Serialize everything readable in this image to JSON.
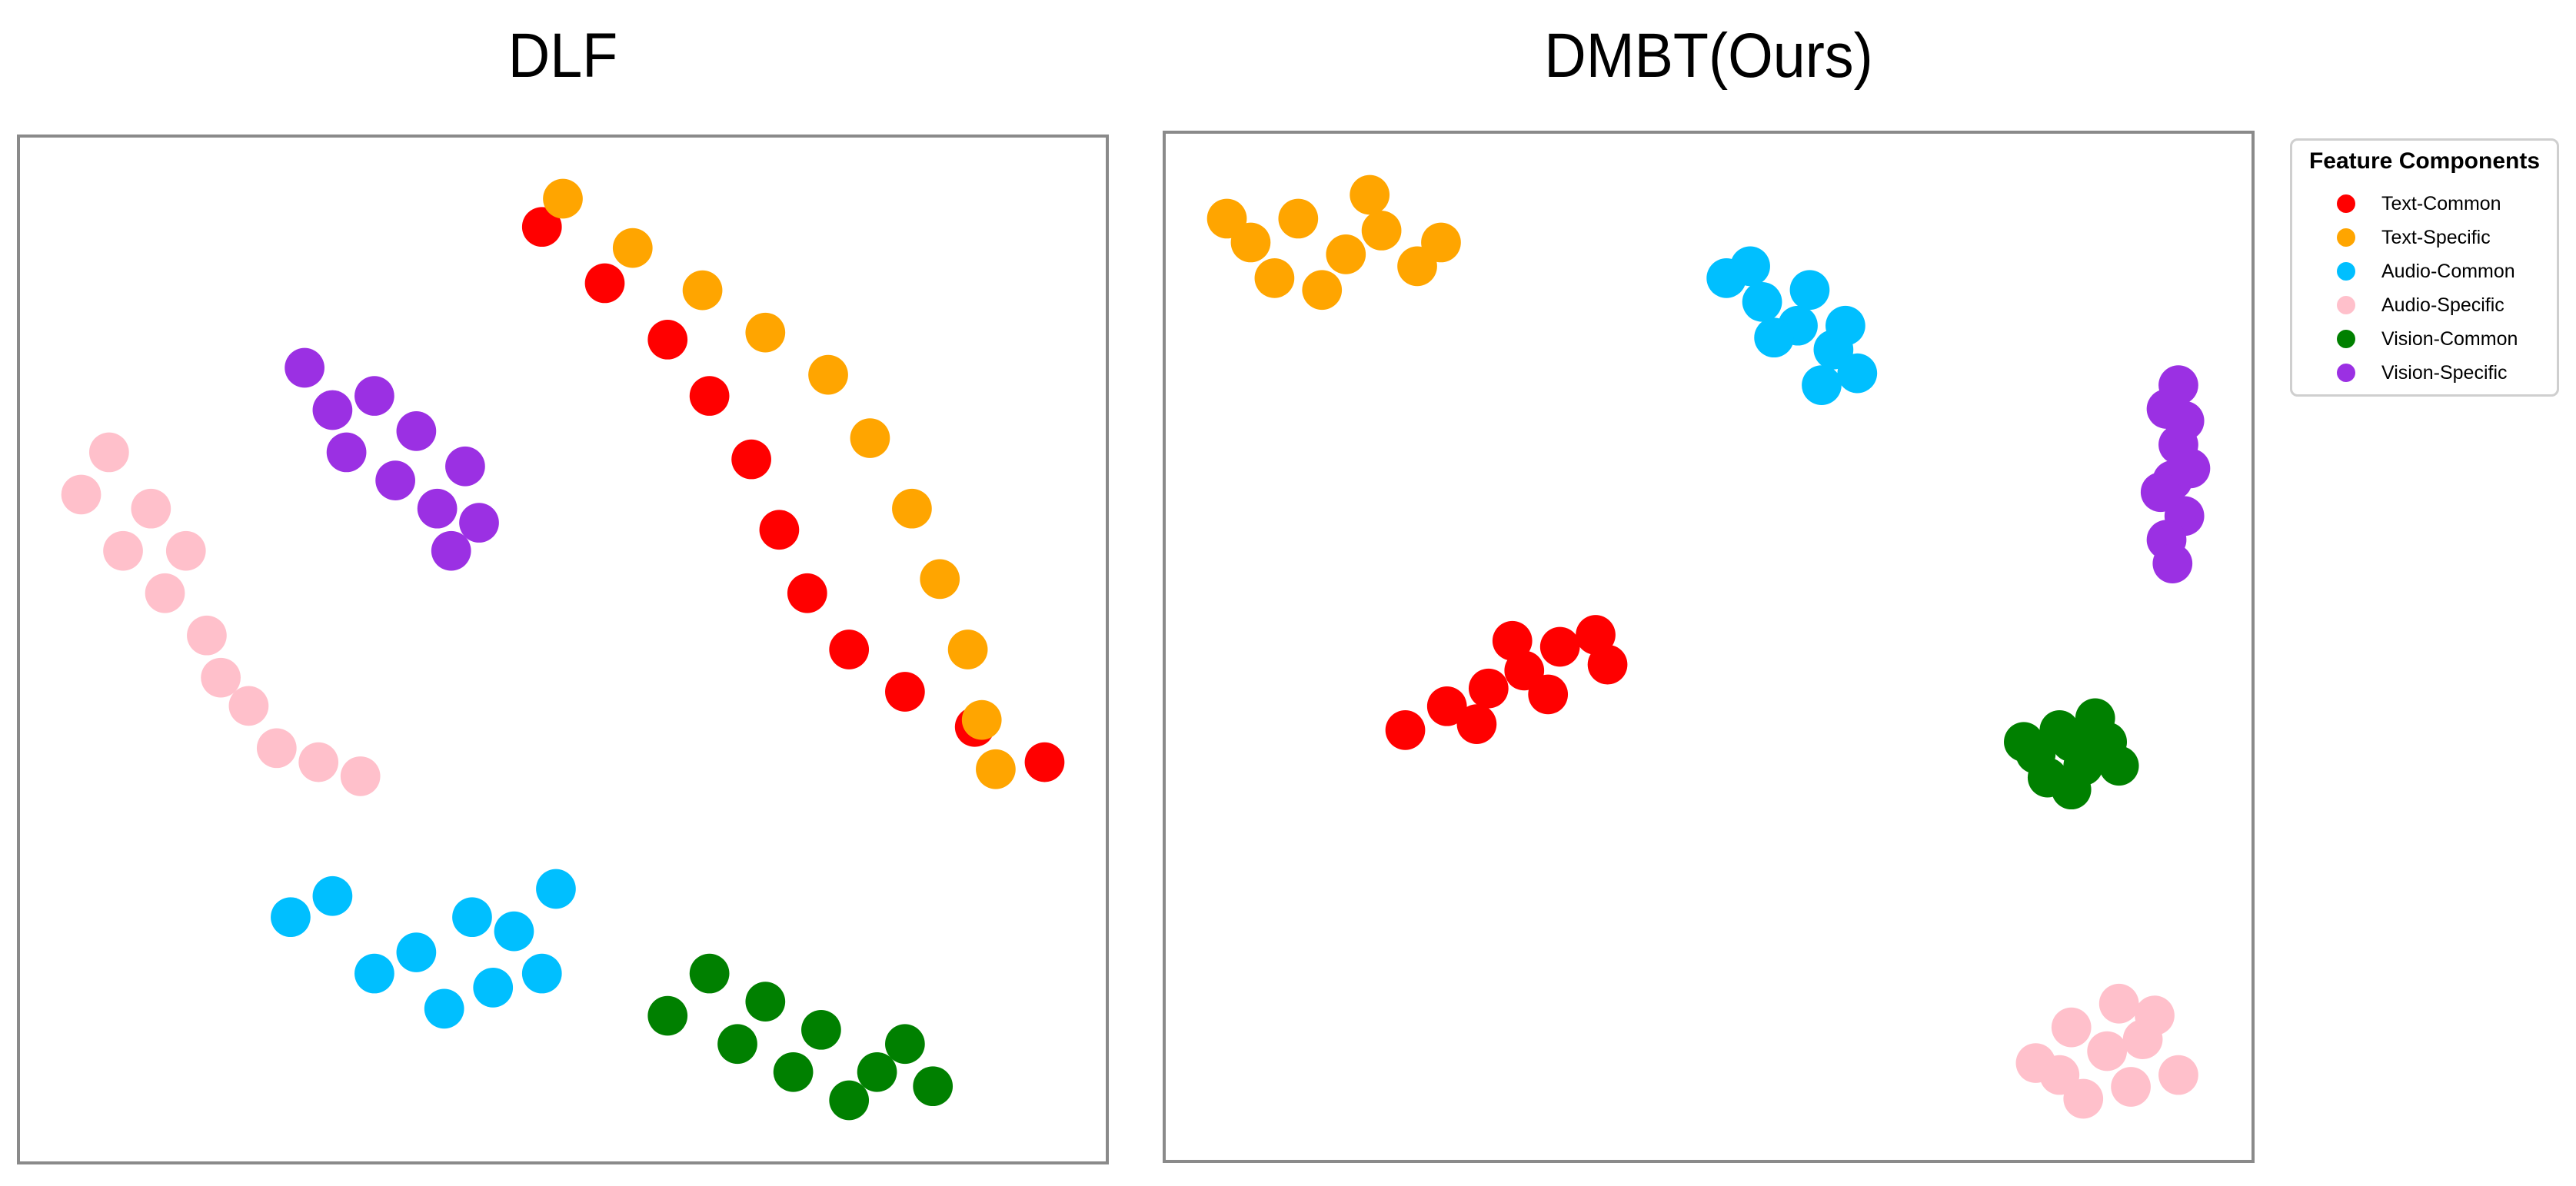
{
  "chart_data": [
    {
      "type": "scatter",
      "title": "DLF",
      "xlabel": "",
      "ylabel": "",
      "grid": false,
      "legend": "none",
      "series": [
        {
          "name": "Text-Common",
          "color": "#ff0000",
          "points": [
            [
              -32,
              76
            ],
            [
              -23,
              68
            ],
            [
              -14,
              60
            ],
            [
              -8,
              52
            ],
            [
              -2,
              43
            ],
            [
              2,
              33
            ],
            [
              6,
              24
            ],
            [
              12,
              16
            ],
            [
              20,
              10
            ],
            [
              30,
              5
            ],
            [
              40,
              0
            ]
          ]
        },
        {
          "name": "Text-Specific",
          "color": "#ffa500",
          "points": [
            [
              -29,
              80
            ],
            [
              -19,
              73
            ],
            [
              -9,
              67
            ],
            [
              0,
              61
            ],
            [
              9,
              55
            ],
            [
              15,
              46
            ],
            [
              21,
              36
            ],
            [
              25,
              26
            ],
            [
              29,
              16
            ],
            [
              31,
              6
            ],
            [
              33,
              -1
            ]
          ]
        },
        {
          "name": "Audio-Common",
          "color": "#00bfff",
          "points": [
            [
              -68,
              -22
            ],
            [
              -62,
              -19
            ],
            [
              -56,
              -30
            ],
            [
              -50,
              -27
            ],
            [
              -46,
              -35
            ],
            [
              -42,
              -22
            ],
            [
              -39,
              -32
            ],
            [
              -36,
              -24
            ],
            [
              -32,
              -30
            ],
            [
              -30,
              -18
            ]
          ]
        },
        {
          "name": "Audio-Specific",
          "color": "#ffc0cb",
          "points": [
            [
              -98,
              38
            ],
            [
              -94,
              44
            ],
            [
              -92,
              30
            ],
            [
              -88,
              36
            ],
            [
              -86,
              24
            ],
            [
              -83,
              30
            ],
            [
              -80,
              18
            ],
            [
              -78,
              12
            ],
            [
              -74,
              8
            ],
            [
              -70,
              2
            ],
            [
              -64,
              0
            ],
            [
              -58,
              -2
            ]
          ]
        },
        {
          "name": "Vision-Common",
          "color": "#008000",
          "points": [
            [
              -14,
              -36
            ],
            [
              -8,
              -30
            ],
            [
              -4,
              -40
            ],
            [
              0,
              -34
            ],
            [
              4,
              -44
            ],
            [
              8,
              -38
            ],
            [
              12,
              -48
            ],
            [
              16,
              -44
            ],
            [
              20,
              -40
            ],
            [
              24,
              -46
            ]
          ]
        },
        {
          "name": "Vision-Specific",
          "color": "#9b30e3",
          "points": [
            [
              -66,
              56
            ],
            [
              -62,
              50
            ],
            [
              -60,
              44
            ],
            [
              -56,
              52
            ],
            [
              -53,
              40
            ],
            [
              -50,
              47
            ],
            [
              -47,
              36
            ],
            [
              -45,
              30
            ],
            [
              -43,
              42
            ],
            [
              -41,
              34
            ]
          ]
        }
      ]
    },
    {
      "type": "scatter",
      "title": "DMBT(Ours)",
      "xlabel": "",
      "ylabel": "",
      "grid": false,
      "legend": "right",
      "legend_title": "Feature Components",
      "series": [
        {
          "name": "Text-Common",
          "color": "#ff0000",
          "points": [
            [
              -62,
              -12
            ],
            [
              -55,
              -8
            ],
            [
              -48,
              -5
            ],
            [
              -42,
              -2
            ],
            [
              -36,
              2
            ],
            [
              -30,
              4
            ],
            [
              -50,
              -11
            ],
            [
              -38,
              -6
            ],
            [
              -44,
              3
            ],
            [
              -28,
              -1
            ]
          ]
        },
        {
          "name": "Text-Specific",
          "color": "#ffa500",
          "points": [
            [
              -88,
              70
            ],
            [
              -80,
              74
            ],
            [
              -72,
              68
            ],
            [
              -66,
              72
            ],
            [
              -60,
              66
            ],
            [
              -76,
              62
            ],
            [
              -84,
              64
            ],
            [
              -68,
              78
            ],
            [
              -56,
              70
            ],
            [
              -92,
              74
            ]
          ]
        },
        {
          "name": "Audio-Common",
          "color": "#00bfff",
          "points": [
            [
              -8,
              64
            ],
            [
              -2,
              60
            ],
            [
              4,
              56
            ],
            [
              10,
              52
            ],
            [
              14,
              48
            ],
            [
              0,
              54
            ],
            [
              6,
              62
            ],
            [
              -4,
              66
            ],
            [
              12,
              56
            ],
            [
              8,
              46
            ]
          ]
        },
        {
          "name": "Audio-Specific",
          "color": "#ffc0cb",
          "points": [
            [
              44,
              -68
            ],
            [
              50,
              -62
            ],
            [
              56,
              -66
            ],
            [
              60,
              -72
            ],
            [
              64,
              -60
            ],
            [
              52,
              -74
            ],
            [
              58,
              -58
            ],
            [
              68,
              -70
            ],
            [
              48,
              -70
            ],
            [
              62,
              -64
            ]
          ]
        },
        {
          "name": "Vision-Common",
          "color": "#008000",
          "points": [
            [
              44,
              -16
            ],
            [
              48,
              -12
            ],
            [
              52,
              -18
            ],
            [
              56,
              -14
            ],
            [
              50,
              -22
            ],
            [
              46,
              -20
            ],
            [
              54,
              -10
            ],
            [
              58,
              -18
            ],
            [
              42,
              -14
            ],
            [
              50,
              -14
            ]
          ]
        },
        {
          "name": "Vision-Specific",
          "color": "#9b30e3",
          "points": [
            [
              66,
              42
            ],
            [
              68,
              36
            ],
            [
              67,
              30
            ],
            [
              69,
              24
            ],
            [
              66,
              20
            ],
            [
              68,
              46
            ],
            [
              70,
              32
            ],
            [
              65,
              28
            ],
            [
              69,
              40
            ],
            [
              67,
              16
            ]
          ]
        }
      ]
    }
  ]
}
